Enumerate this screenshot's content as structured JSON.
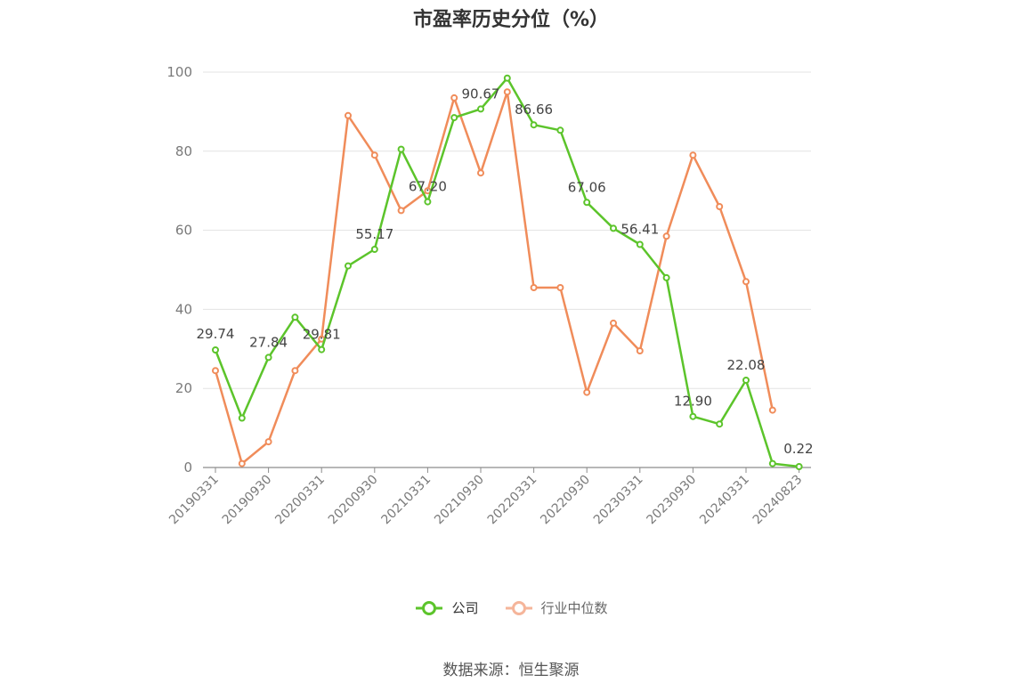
{
  "chart_data": {
    "type": "line",
    "title": "市盈率历史分位（%）",
    "x_tick_labels": [
      "20190331",
      "20190930",
      "20200331",
      "20200930",
      "20210331",
      "20210930",
      "20220331",
      "20220930",
      "20230331",
      "20230930",
      "20240331",
      "20240823"
    ],
    "y_ticks": [
      0,
      20,
      40,
      60,
      80,
      100
    ],
    "ylim": [
      0,
      100
    ],
    "grid": true,
    "legend_placement": "bottom",
    "series": [
      {
        "name": "公司",
        "color": "#5cc42b",
        "values": [
          29.74,
          12.5,
          27.84,
          38.0,
          29.81,
          51.0,
          55.17,
          80.5,
          67.2,
          88.5,
          90.67,
          98.5,
          86.66,
          85.3,
          67.06,
          60.5,
          56.41,
          48.0,
          12.9,
          11.0,
          22.08,
          1.0,
          0.22
        ],
        "labels": [
          "29.74",
          "",
          "27.84",
          "",
          "29.81",
          "",
          "55.17",
          "",
          "67.20",
          "",
          "90.67",
          "",
          "86.66",
          "",
          "67.06",
          "",
          "56.41",
          "",
          "12.90",
          "",
          "22.08",
          "",
          "0.22"
        ]
      },
      {
        "name": "行业中位数",
        "color": "#f08c5a",
        "values": [
          24.5,
          1.0,
          6.5,
          24.5,
          32.5,
          89.0,
          79.0,
          65.0,
          70.0,
          93.5,
          74.5,
          95.0,
          45.5,
          45.5,
          19.0,
          36.5,
          29.5,
          58.5,
          79.0,
          66.0,
          47.0,
          14.5,
          null
        ]
      }
    ]
  },
  "legend": {
    "company_label": "公司",
    "industry_label": "行业中位数"
  },
  "source_text": "数据来源：恒生聚源"
}
